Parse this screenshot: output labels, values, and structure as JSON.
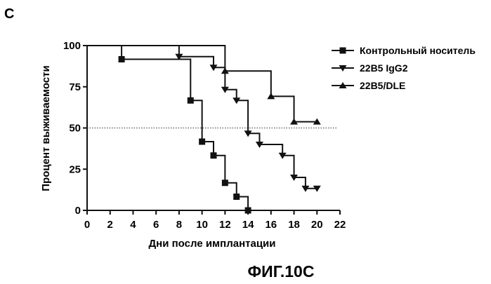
{
  "panel_label": "C",
  "figure_caption": "ФИГ.10С",
  "colors": {
    "ink": "#111111",
    "reference_line": "#333333",
    "background": "#ffffff"
  },
  "chart_data": {
    "type": "line",
    "subtype": "kaplan-meier-step",
    "title": "",
    "xlabel": "Дни после имплантации",
    "ylabel": "Процент выживаемости",
    "xlim": [
      0,
      22
    ],
    "ylim": [
      0,
      100
    ],
    "x_ticks": [
      "0",
      "2",
      "4",
      "6",
      "8",
      "10",
      "12",
      "14",
      "16",
      "18",
      "20",
      "22"
    ],
    "y_ticks": [
      "0",
      "25",
      "50",
      "75",
      "100"
    ],
    "reference_line": {
      "y": 50,
      "style": "dotted"
    },
    "legend_position": "top-right",
    "series": [
      {
        "name": "Контрольный носитель",
        "marker": "square",
        "steps": [
          [
            0,
            100
          ],
          [
            3,
            91.7
          ],
          [
            9,
            66.7
          ],
          [
            10,
            41.7
          ],
          [
            11,
            33.3
          ],
          [
            12,
            16.7
          ],
          [
            13,
            8.3
          ],
          [
            14,
            0
          ]
        ],
        "markers": [
          [
            3,
            91.7
          ],
          [
            9,
            66.7
          ],
          [
            10,
            41.7
          ],
          [
            11,
            33.3
          ],
          [
            12,
            16.7
          ],
          [
            13,
            8.3
          ],
          [
            14,
            0
          ]
        ]
      },
      {
        "name": "22B5 IgG2",
        "marker": "triangle-down",
        "steps": [
          [
            0,
            100
          ],
          [
            8,
            93.3
          ],
          [
            11,
            86.7
          ],
          [
            12,
            73.3
          ],
          [
            13,
            66.7
          ],
          [
            14,
            46.7
          ],
          [
            15,
            40
          ],
          [
            17,
            33.3
          ],
          [
            18,
            20
          ],
          [
            19,
            13.3
          ],
          [
            20,
            13.3
          ]
        ],
        "markers": [
          [
            8,
            93.3
          ],
          [
            11,
            86.7
          ],
          [
            12,
            73.3
          ],
          [
            13,
            66.7
          ],
          [
            14,
            46.7
          ],
          [
            15,
            40
          ],
          [
            17,
            33.3
          ],
          [
            18,
            20
          ],
          [
            19,
            13.3
          ],
          [
            20,
            13.3
          ]
        ]
      },
      {
        "name": "22B5/DLE",
        "marker": "triangle-up",
        "steps": [
          [
            0,
            100
          ],
          [
            12,
            84.6
          ],
          [
            16,
            69.2
          ],
          [
            18,
            53.8
          ],
          [
            20,
            53.8
          ]
        ],
        "markers": [
          [
            12,
            84.6
          ],
          [
            16,
            69.2
          ],
          [
            18,
            53.8
          ],
          [
            20,
            53.8
          ]
        ]
      }
    ]
  }
}
